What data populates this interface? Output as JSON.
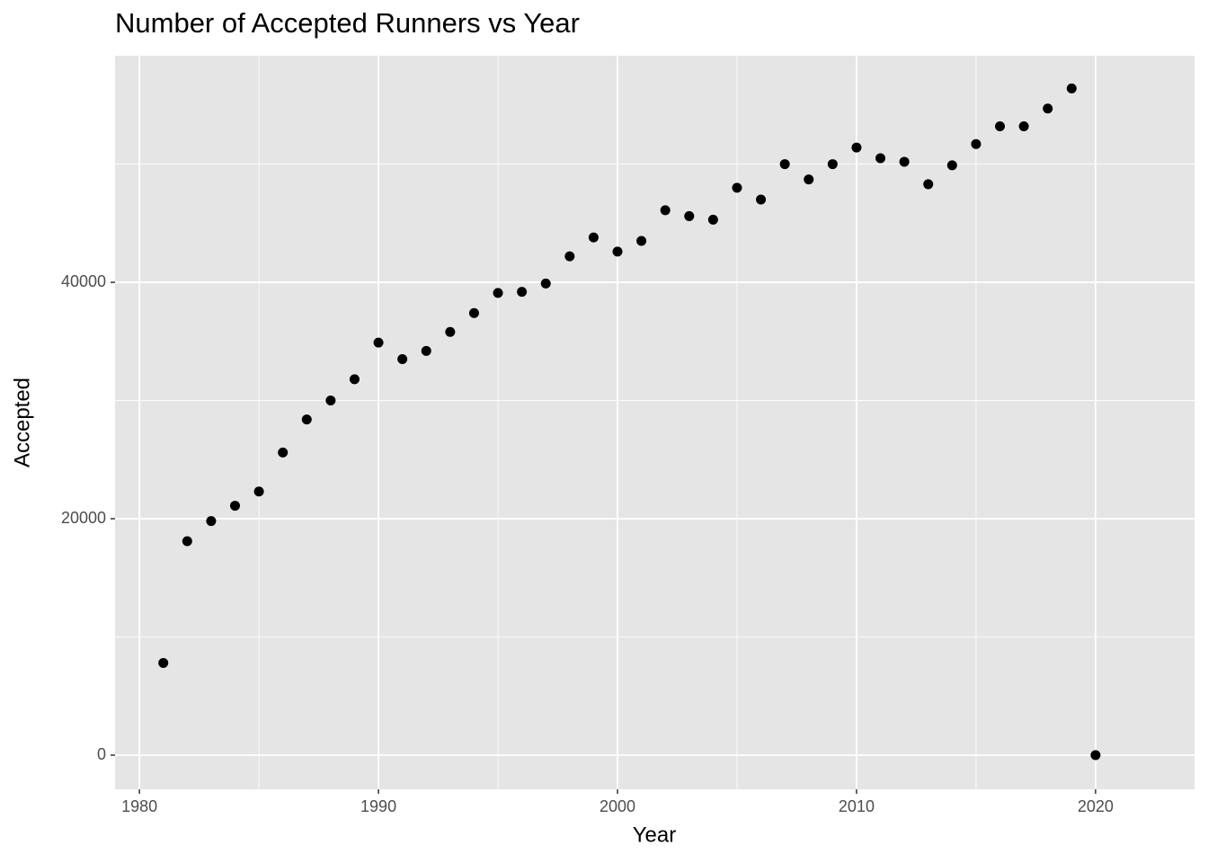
{
  "chart_data": {
    "type": "scatter",
    "title": "Number of Accepted Runners vs Year",
    "x_label": "Year",
    "y_label": "Accepted",
    "series": [
      {
        "color": "#000000",
        "x": [
          1981,
          1982,
          1983,
          1984,
          1985,
          1986,
          1987,
          1988,
          1989,
          1990,
          1991,
          1992,
          1993,
          1994,
          1995,
          1996,
          1997,
          1998,
          1999,
          2000,
          2001,
          2002,
          2003,
          2004,
          2005,
          2006,
          2007,
          2008,
          2009,
          2010,
          2011,
          2012,
          2013,
          2014,
          2015,
          2016,
          2017,
          2018,
          2019,
          2020
        ],
        "values": [
          7800,
          18100,
          19800,
          21100,
          22300,
          25600,
          28400,
          30000,
          31800,
          34900,
          33500,
          34200,
          35800,
          37400,
          39100,
          39200,
          39900,
          42200,
          43800,
          42600,
          43500,
          46100,
          45600,
          45300,
          48000,
          47000,
          50000,
          48700,
          50000,
          51400,
          50500,
          50200,
          48300,
          49900,
          51700,
          53200,
          53200,
          54700,
          56400,
          0
        ]
      }
    ],
    "xlim": [
      1978.98,
      2024.14
    ],
    "ylim": [
      -2890,
      59170
    ],
    "xticks": [
      1980,
      1990,
      2000,
      2010,
      2020
    ],
    "yticks": [
      0,
      20000,
      40000
    ],
    "grid": true,
    "minor_grid": true,
    "panel_color": "#e5e5e5"
  }
}
